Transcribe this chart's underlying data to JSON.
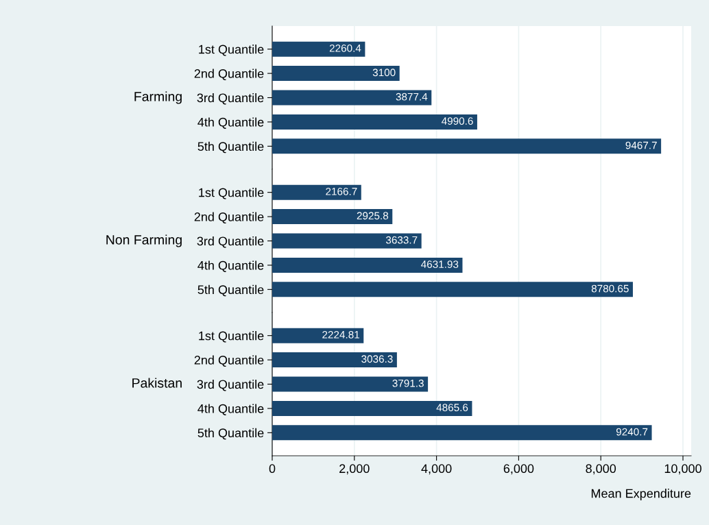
{
  "chart_data": [
    {
      "type": "bar",
      "orientation": "horizontal",
      "ylabel": "Farming",
      "categories": [
        "1st Quantile",
        "2nd Quantile",
        "3rd Quantile",
        "4th Quantile",
        "5th Quantile"
      ],
      "values": [
        2260.4,
        3100,
        3877.4,
        4990.6,
        9467.7
      ],
      "color": "#1a476f",
      "data_labels": true,
      "xlim": [
        0,
        10200
      ],
      "xticks": [
        {
          "value": 2000,
          "label": null
        },
        {
          "value": 4000,
          "label": null
        },
        {
          "value": 6000,
          "label": null
        },
        {
          "value": 8000,
          "label": null
        },
        {
          "value": 10000,
          "label": null
        }
      ],
      "grid": "x",
      "tick_labels": "y"
    },
    {
      "type": "bar",
      "orientation": "horizontal",
      "ylabel": "Non Farming",
      "categories": [
        "1st Quantile",
        "2nd Quantile",
        "3rd Quantile",
        "4th Quantile",
        "5th Quantile"
      ],
      "values": [
        2166.7,
        2925.8,
        3633.7,
        4631.93,
        8780.65
      ],
      "color": "#1a476f",
      "data_labels": true,
      "xlim": [
        0,
        10200
      ],
      "xticks": [
        {
          "value": 2000,
          "label": null
        },
        {
          "value": 4000,
          "label": null
        },
        {
          "value": 6000,
          "label": null
        },
        {
          "value": 8000,
          "label": null
        },
        {
          "value": 10000,
          "label": null
        }
      ],
      "grid": "x",
      "tick_labels": "y"
    },
    {
      "type": "bar",
      "orientation": "horizontal",
      "ylabel": "Pakistan",
      "xlabel": "Mean Expenditure",
      "categories": [
        "1st Quantile",
        "2nd Quantile",
        "3rd Quantile",
        "4th Quantile",
        "5th Quantile"
      ],
      "values": [
        2224.81,
        3036.3,
        3791.3,
        4865.6,
        9240.7
      ],
      "color": "#1a476f",
      "data_labels": true,
      "xlim": [
        0,
        10200
      ],
      "xticks": [
        0,
        {
          "value": 2000,
          "label": "2,000"
        },
        {
          "value": 4000,
          "label": "4,000"
        },
        {
          "value": 6000,
          "label": "6,000"
        },
        {
          "value": 8000,
          "label": "8,000"
        },
        {
          "value": 10000,
          "label": "10,000"
        }
      ],
      "grid": "x"
    }
  ]
}
